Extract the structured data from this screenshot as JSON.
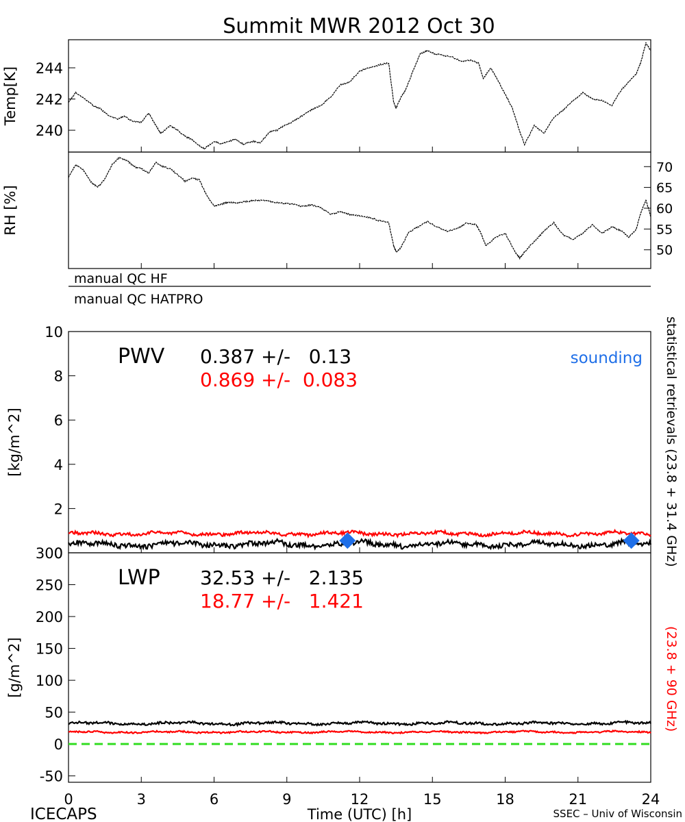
{
  "title": "Summit MWR 2012 Oct 30",
  "footer": {
    "left": "ICECAPS",
    "center": "Time (UTC) [h]",
    "right": "SSEC – Univ of Wisconsin"
  },
  "qc_rows": [
    "manual QC HF",
    "manual QC HATPRO"
  ],
  "right_label": {
    "black": "statistical retrievals (23.8 + 31.4 GHz)",
    "red": "(23.8 + 90 GHz)"
  },
  "colors": {
    "black": "#000000",
    "red": "#ff0000",
    "sounding": "#1f6fe8",
    "zero_line": "#33dd22"
  },
  "chart_data": [
    {
      "id": "temp",
      "type": "line",
      "ylabel": "Temp[K]",
      "x_range": [
        0,
        24
      ],
      "ylim": [
        238.6,
        245.8
      ],
      "yticks": [
        240,
        242,
        244
      ],
      "series": [
        {
          "x": [
            0,
            0.3,
            0.6,
            1.0,
            1.3,
            1.6,
            2.0,
            2.3,
            2.6,
            3.0,
            3.3,
            3.6,
            3.8,
            4.2,
            4.5,
            4.8,
            5.1,
            5.4,
            5.6,
            6.0,
            6.3,
            6.6,
            6.9,
            7.2,
            7.6,
            7.9,
            8.3,
            8.6,
            8.9,
            9.2,
            9.6,
            10.0,
            10.4,
            10.8,
            11.2,
            11.6,
            12.0,
            12.4,
            12.8,
            13.2,
            13.4,
            13.5,
            13.7,
            13.9,
            14.2,
            14.5,
            14.8,
            15.1,
            15.4,
            15.8,
            16.2,
            16.6,
            16.9,
            17.1,
            17.4,
            17.7,
            18.0,
            18.3,
            18.6,
            18.8,
            19.2,
            19.6,
            20.0,
            20.4,
            20.8,
            21.2,
            21.6,
            22.0,
            22.4,
            22.8,
            23.1,
            23.4,
            23.6,
            23.8,
            24.0
          ],
          "y": [
            241.8,
            242.4,
            242.1,
            241.6,
            241.4,
            241.0,
            240.7,
            240.9,
            240.6,
            240.5,
            241.1,
            240.3,
            239.8,
            240.3,
            240.0,
            239.6,
            239.4,
            239.0,
            238.8,
            239.3,
            239.1,
            239.3,
            239.4,
            239.1,
            239.3,
            239.2,
            239.9,
            240.0,
            240.3,
            240.5,
            240.9,
            241.3,
            241.6,
            242.1,
            242.9,
            243.1,
            243.8,
            244.0,
            244.2,
            244.3,
            241.8,
            241.4,
            242.1,
            242.6,
            243.8,
            244.9,
            245.1,
            244.9,
            244.8,
            244.7,
            244.4,
            244.5,
            244.3,
            243.3,
            244.0,
            243.2,
            242.3,
            241.4,
            239.9,
            239.1,
            240.3,
            239.8,
            240.8,
            241.3,
            241.9,
            242.4,
            242.0,
            241.9,
            241.6,
            242.6,
            243.1,
            243.6,
            244.4,
            245.6,
            245.1
          ]
        }
      ]
    },
    {
      "id": "rh",
      "type": "line",
      "ylabel": "RH [%]",
      "x_range": [
        0,
        24
      ],
      "ylim": [
        45.5,
        73.5
      ],
      "yticks": [
        50,
        55,
        60,
        65,
        70
      ],
      "series": [
        {
          "x": [
            0,
            0.3,
            0.6,
            0.9,
            1.2,
            1.5,
            1.8,
            2.1,
            2.4,
            2.7,
            3.0,
            3.3,
            3.6,
            3.9,
            4.2,
            4.5,
            4.8,
            5.1,
            5.4,
            5.7,
            6.0,
            6.3,
            6.6,
            6.9,
            7.2,
            7.6,
            8.0,
            8.4,
            8.8,
            9.2,
            9.6,
            10.0,
            10.4,
            10.8,
            11.2,
            11.6,
            12.0,
            12.4,
            12.8,
            13.2,
            13.4,
            13.5,
            13.7,
            14.0,
            14.4,
            14.8,
            15.2,
            15.6,
            16.0,
            16.4,
            16.8,
            17.0,
            17.2,
            17.6,
            18.0,
            18.4,
            18.6,
            18.8,
            19.2,
            19.6,
            20.0,
            20.4,
            20.8,
            21.2,
            21.6,
            22.0,
            22.4,
            22.8,
            23.1,
            23.4,
            23.6,
            23.8,
            24.0
          ],
          "y": [
            67.5,
            70.5,
            69.2,
            66.5,
            65.0,
            67.0,
            70.5,
            72.2,
            71.5,
            70.0,
            69.5,
            68.5,
            71.0,
            70.0,
            69.5,
            68.0,
            66.5,
            67.2,
            66.8,
            63.0,
            60.5,
            61.0,
            61.5,
            61.2,
            61.5,
            61.8,
            62.0,
            61.5,
            61.2,
            61.0,
            60.5,
            60.8,
            60.2,
            58.5,
            59.2,
            58.5,
            58.2,
            57.8,
            57.0,
            56.5,
            51.0,
            49.5,
            50.5,
            54.0,
            55.5,
            56.8,
            55.5,
            54.5,
            55.0,
            56.5,
            56.0,
            54.0,
            51.0,
            53.0,
            54.0,
            49.5,
            48.0,
            49.5,
            52.0,
            54.5,
            56.5,
            53.5,
            52.5,
            54.0,
            56.0,
            54.0,
            55.5,
            54.5,
            53.0,
            55.0,
            59.0,
            62.0,
            58.0
          ]
        }
      ]
    },
    {
      "id": "pwv",
      "type": "line",
      "label": "PWV",
      "ylabel": "[kg/m^2]",
      "x_range": [
        0,
        24
      ],
      "ylim": [
        0,
        10
      ],
      "yticks": [
        0,
        2,
        4,
        6,
        8,
        10
      ],
      "stats": [
        {
          "color": "black",
          "text": "0.387 +/-   0.13"
        },
        {
          "color": "red",
          "text": "0.869 +/-  0.083"
        }
      ],
      "sounding_label": "sounding",
      "sounding": [
        {
          "x": 11.5,
          "y": 0.55
        },
        {
          "x": 23.2,
          "y": 0.55
        }
      ],
      "series": [
        {
          "color": "black",
          "mean": 0.387,
          "spread": 0.13
        },
        {
          "color": "red",
          "mean": 0.869,
          "spread": 0.083
        }
      ]
    },
    {
      "id": "lwp",
      "type": "line",
      "label": "LWP",
      "ylabel": "[g/m^2]",
      "x_range": [
        0,
        24
      ],
      "xticks": [
        0,
        3,
        6,
        9,
        12,
        15,
        18,
        21,
        24
      ],
      "ylim": [
        -60,
        300
      ],
      "yticks": [
        -50,
        0,
        50,
        100,
        150,
        200,
        250,
        300
      ],
      "stats": [
        {
          "color": "black",
          "text": "32.53 +/-   2.135"
        },
        {
          "color": "red",
          "text": "18.77 +/-   1.421"
        }
      ],
      "zero_line": 0,
      "series": [
        {
          "color": "black",
          "mean": 32.53,
          "spread": 2.135
        },
        {
          "color": "red",
          "mean": 18.77,
          "spread": 1.421
        }
      ]
    }
  ]
}
